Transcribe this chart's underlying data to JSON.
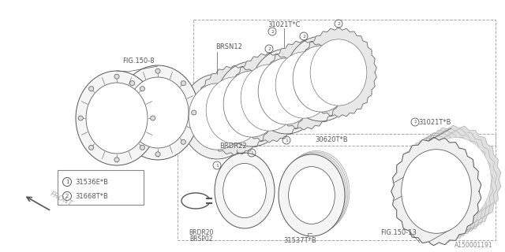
{
  "bg_color": "#ffffff",
  "line_color": "#555555",
  "light_line": "#999999",
  "doc_number": "A150001191",
  "labels": {
    "fig150_8": "FIG.150-8",
    "fig150_13": "FIG.150-13",
    "brsn12": "BRSN12",
    "brdr22": "BRDR22",
    "brdr20": "BRDR20",
    "brsp02": "BRSP02",
    "part1_c": "31021T*C",
    "part1_b": "31021T*B",
    "part5": "30620T*B",
    "part6": "31537T*B",
    "front": "FRONT"
  },
  "legend": [
    {
      "num": "1",
      "code": "31536E*B"
    },
    {
      "num": "2",
      "code": "31668T*B"
    }
  ]
}
